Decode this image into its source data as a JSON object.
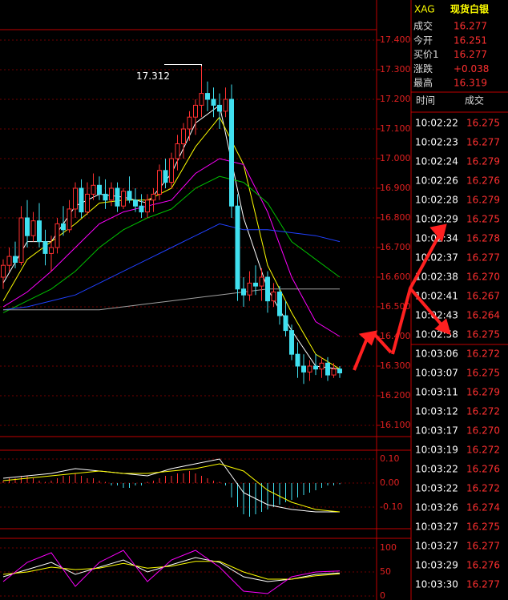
{
  "header": {
    "symbol": "XAG",
    "name": "现货白银"
  },
  "quote": [
    {
      "label": "成交",
      "value": "16.277"
    },
    {
      "label": "今开",
      "value": "16.251"
    },
    {
      "label": "买价1",
      "value": "16.277"
    },
    {
      "label": "涨跌",
      "value": "+0.038"
    },
    {
      "label": "最高",
      "value": "16.319"
    }
  ],
  "ticks_header": [
    "时间",
    "成交"
  ],
  "ticks": [
    [
      "10:02:22",
      "16.275"
    ],
    [
      "10:02:23",
      "16.277"
    ],
    [
      "10:02:24",
      "16.279"
    ],
    [
      "10:02:26",
      "16.276"
    ],
    [
      "10:02:28",
      "16.279"
    ],
    [
      "10:02:29",
      "16.275"
    ],
    [
      "10:02:34",
      "16.278"
    ],
    [
      "10:02:37",
      "16.277"
    ],
    [
      "10:02:38",
      "16.270"
    ],
    [
      "10:02:41",
      "16.267"
    ],
    [
      "10:02:43",
      "16.264"
    ],
    [
      "10:02:58",
      "16.275"
    ],
    [
      "10:03:06",
      "16.272"
    ],
    [
      "10:03:07",
      "16.275"
    ],
    [
      "10:03:11",
      "16.279"
    ],
    [
      "10:03:12",
      "16.272"
    ],
    [
      "10:03:17",
      "16.270"
    ],
    [
      "10:03:19",
      "16.272"
    ],
    [
      "10:03:22",
      "16.276"
    ],
    [
      "10:03:22",
      "16.272"
    ],
    [
      "10:03:26",
      "16.274"
    ],
    [
      "10:03:27",
      "16.275"
    ],
    [
      "10:03:27",
      "16.277"
    ],
    [
      "10:03:29",
      "16.276"
    ],
    [
      "10:03:30",
      "16.277"
    ]
  ],
  "chart": {
    "price_ticks": [
      {
        "value": 17.4,
        "label": "17.400"
      },
      {
        "value": 17.3,
        "label": "17.300"
      },
      {
        "value": 17.2,
        "label": "17.200"
      },
      {
        "value": 17.1,
        "label": "17.100"
      },
      {
        "value": 17.0,
        "label": "17.000"
      },
      {
        "value": 16.9,
        "label": "16.900"
      },
      {
        "value": 16.8,
        "label": "16.800"
      },
      {
        "value": 16.7,
        "label": "16.700"
      },
      {
        "value": 16.6,
        "label": "16.600"
      },
      {
        "value": 16.5,
        "label": "16.500"
      },
      {
        "value": 16.4,
        "label": "16.400"
      },
      {
        "value": 16.3,
        "label": "16.300"
      },
      {
        "value": 16.2,
        "label": "16.200"
      },
      {
        "value": 16.1,
        "label": "16.100"
      }
    ],
    "candles": [
      [
        16.6,
        16.66,
        16.56,
        16.64
      ],
      [
        16.64,
        16.7,
        16.62,
        16.67
      ],
      [
        16.67,
        16.72,
        16.63,
        16.65
      ],
      [
        16.65,
        16.84,
        16.64,
        16.8
      ],
      [
        16.8,
        16.86,
        16.7,
        16.74
      ],
      [
        16.74,
        16.82,
        16.72,
        16.79
      ],
      [
        16.79,
        16.85,
        16.7,
        16.72
      ],
      [
        16.72,
        16.76,
        16.64,
        16.68
      ],
      [
        16.68,
        16.74,
        16.62,
        16.7
      ],
      [
        16.7,
        16.8,
        16.68,
        16.78
      ],
      [
        16.78,
        16.84,
        16.74,
        16.76
      ],
      [
        16.76,
        16.86,
        16.75,
        16.83
      ],
      [
        16.83,
        16.92,
        16.8,
        16.9
      ],
      [
        16.9,
        16.93,
        16.8,
        16.82
      ],
      [
        16.82,
        16.92,
        16.81,
        16.88
      ],
      [
        16.88,
        16.95,
        16.86,
        16.91
      ],
      [
        16.91,
        16.94,
        16.86,
        16.88
      ],
      [
        16.88,
        16.93,
        16.83,
        16.86
      ],
      [
        16.86,
        16.92,
        16.84,
        16.9
      ],
      [
        16.9,
        16.92,
        16.82,
        16.84
      ],
      [
        16.84,
        16.9,
        16.83,
        16.89
      ],
      [
        16.89,
        16.94,
        16.85,
        16.86
      ],
      [
        16.86,
        16.9,
        16.82,
        16.84
      ],
      [
        16.84,
        16.88,
        16.8,
        16.82
      ],
      [
        16.82,
        16.88,
        16.8,
        16.86
      ],
      [
        16.86,
        16.9,
        16.82,
        16.88
      ],
      [
        16.88,
        16.98,
        16.86,
        16.96
      ],
      [
        16.96,
        17.0,
        16.9,
        16.92
      ],
      [
        16.92,
        17.02,
        16.9,
        17.0
      ],
      [
        17.0,
        17.08,
        16.96,
        17.05
      ],
      [
        17.05,
        17.12,
        17.0,
        17.1
      ],
      [
        17.1,
        17.16,
        17.06,
        17.14
      ],
      [
        17.14,
        17.2,
        17.08,
        17.18
      ],
      [
        17.18,
        17.312,
        17.14,
        17.22
      ],
      [
        17.22,
        17.26,
        17.16,
        17.2
      ],
      [
        17.2,
        17.24,
        17.14,
        17.18
      ],
      [
        17.18,
        17.22,
        17.1,
        17.16
      ],
      [
        17.16,
        17.24,
        17.14,
        17.2
      ],
      [
        17.2,
        17.25,
        16.8,
        16.84
      ],
      [
        16.84,
        16.88,
        16.52,
        16.56
      ],
      [
        16.56,
        16.6,
        16.5,
        16.54
      ],
      [
        16.54,
        16.62,
        16.52,
        16.58
      ],
      [
        16.58,
        16.64,
        16.54,
        16.57
      ],
      [
        16.57,
        16.63,
        16.52,
        16.6
      ],
      [
        16.6,
        16.62,
        16.48,
        16.52
      ],
      [
        16.52,
        16.58,
        16.5,
        16.55
      ],
      [
        16.55,
        16.57,
        16.44,
        16.47
      ],
      [
        16.47,
        16.52,
        16.4,
        16.42
      ],
      [
        16.42,
        16.44,
        16.32,
        16.34
      ],
      [
        16.34,
        16.38,
        16.26,
        16.3
      ],
      [
        16.3,
        16.34,
        16.24,
        16.28
      ],
      [
        16.28,
        16.32,
        16.25,
        16.3
      ],
      [
        16.3,
        16.34,
        16.27,
        16.29
      ],
      [
        16.29,
        16.33,
        16.26,
        16.31
      ],
      [
        16.31,
        16.33,
        16.25,
        16.27
      ],
      [
        16.27,
        16.31,
        16.26,
        16.29
      ],
      [
        16.29,
        16.3,
        16.26,
        16.277
      ]
    ],
    "ma_lines": [
      {
        "color": "#ffffff",
        "values": [
          16.58,
          16.72,
          16.72,
          16.84,
          16.88,
          16.87,
          16.85,
          16.95,
          17.12,
          17.18,
          16.8,
          16.56,
          16.42,
          16.3,
          16.29
        ]
      },
      {
        "color": "#ffff00",
        "values": [
          16.52,
          16.66,
          16.72,
          16.78,
          16.85,
          16.86,
          16.86,
          16.9,
          17.04,
          17.14,
          16.98,
          16.64,
          16.48,
          16.34,
          16.29
        ]
      },
      {
        "color": "#ff00ff",
        "values": [
          16.5,
          16.55,
          16.62,
          16.7,
          16.78,
          16.82,
          16.84,
          16.86,
          16.95,
          17.0,
          16.98,
          16.82,
          16.6,
          16.45,
          16.4
        ]
      },
      {
        "color": "#00c000",
        "values": [
          16.48,
          16.52,
          16.56,
          16.62,
          16.7,
          16.76,
          16.8,
          16.83,
          16.9,
          16.94,
          16.92,
          16.85,
          16.72,
          16.66,
          16.6
        ]
      },
      {
        "color": "#2040ff",
        "values": [
          16.49,
          16.5,
          16.52,
          16.54,
          16.58,
          16.62,
          16.66,
          16.7,
          16.74,
          16.78,
          16.76,
          16.76,
          16.75,
          16.74,
          16.72
        ]
      },
      {
        "color": "#a0a0a0",
        "values": [
          16.49,
          16.49,
          16.49,
          16.49,
          16.49,
          16.5,
          16.51,
          16.52,
          16.53,
          16.54,
          16.55,
          16.56,
          16.56,
          16.56,
          16.56
        ]
      }
    ],
    "macd_ticks": [
      {
        "value": 0.1,
        "label": "0.10"
      },
      {
        "value": 0,
        "label": "0.00"
      },
      {
        "value": -0.1,
        "label": "-0.10"
      }
    ],
    "macd_bars": [
      0.01,
      0.02,
      0.02,
      0.03,
      0.03,
      0.02,
      0.01,
      0.005,
      0.01,
      0.02,
      0.03,
      0.03,
      0.04,
      0.03,
      0.02,
      0.02,
      0.01,
      0.005,
      -0.01,
      -0.01,
      -0.02,
      -0.02,
      -0.01,
      -0.01,
      0.005,
      0.01,
      0.02,
      0.03,
      0.03,
      0.04,
      0.04,
      0.05,
      0.04,
      0.03,
      0.02,
      0.01,
      0.005,
      -0.01,
      -0.06,
      -0.1,
      -0.13,
      -0.14,
      -0.13,
      -0.12,
      -0.11,
      -0.1,
      -0.09,
      -0.08,
      -0.07,
      -0.06,
      -0.05,
      -0.04,
      -0.03,
      -0.02,
      -0.01,
      -0.01,
      -0.005
    ],
    "macd_lines": [
      {
        "color": "#ffffff",
        "values": [
          0.02,
          0.03,
          0.04,
          0.06,
          0.05,
          0.04,
          0.03,
          0.06,
          0.08,
          0.1,
          -0.04,
          -0.09,
          -0.11,
          -0.12,
          -0.12
        ]
      },
      {
        "color": "#ffff00",
        "values": [
          0.01,
          0.02,
          0.03,
          0.04,
          0.05,
          0.04,
          0.04,
          0.05,
          0.06,
          0.08,
          0.05,
          -0.03,
          -0.08,
          -0.11,
          -0.12
        ]
      }
    ],
    "kdj_ticks": [
      100,
      50,
      0
    ],
    "kdj_lines": [
      {
        "color": "#ffffff",
        "values": [
          40,
          55,
          70,
          45,
          60,
          75,
          50,
          65,
          80,
          70,
          40,
          30,
          35,
          45,
          48
        ]
      },
      {
        "color": "#ffff00",
        "values": [
          45,
          50,
          60,
          55,
          58,
          68,
          58,
          62,
          72,
          72,
          50,
          35,
          35,
          42,
          46
        ]
      },
      {
        "color": "#ff00ff",
        "values": [
          30,
          70,
          90,
          20,
          70,
          95,
          30,
          75,
          95,
          60,
          10,
          5,
          40,
          50,
          52
        ]
      }
    ]
  }
}
